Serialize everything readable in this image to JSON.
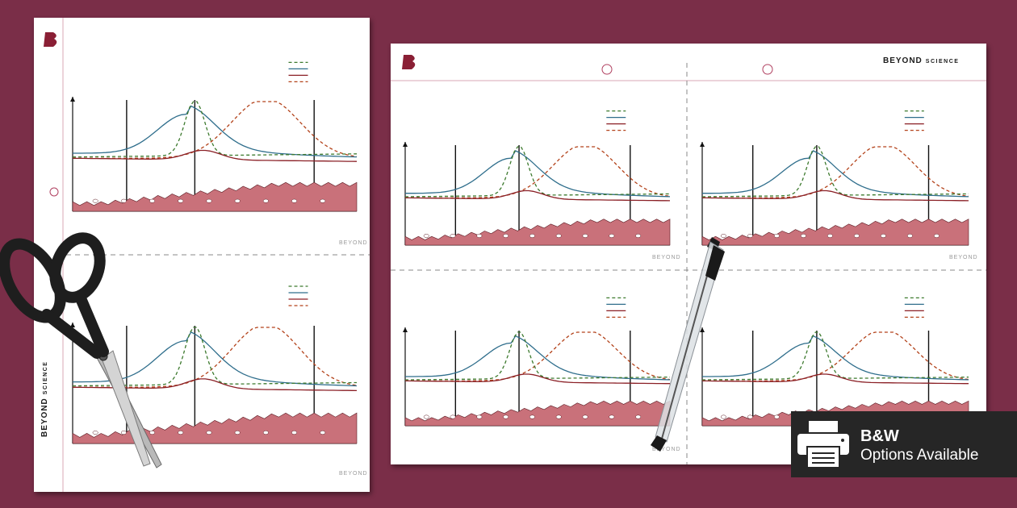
{
  "brand": {
    "logo_letter": "B",
    "name_main": "BEYOND",
    "name_small": "SCIENCE",
    "footer": "BEYOND"
  },
  "badge": {
    "line1": "B&W",
    "line2": "Options Available",
    "icon": "printer-icon"
  },
  "colors": {
    "background": "#7a2e48",
    "blue_curve": "#2f6e8c",
    "green_curve": "#3d7a2e",
    "orange_curve": "#b3421a",
    "red_curve": "#8a1f25",
    "endometrium": "#c9717a"
  },
  "props": [
    "scissors-icon",
    "pen-icon"
  ]
}
